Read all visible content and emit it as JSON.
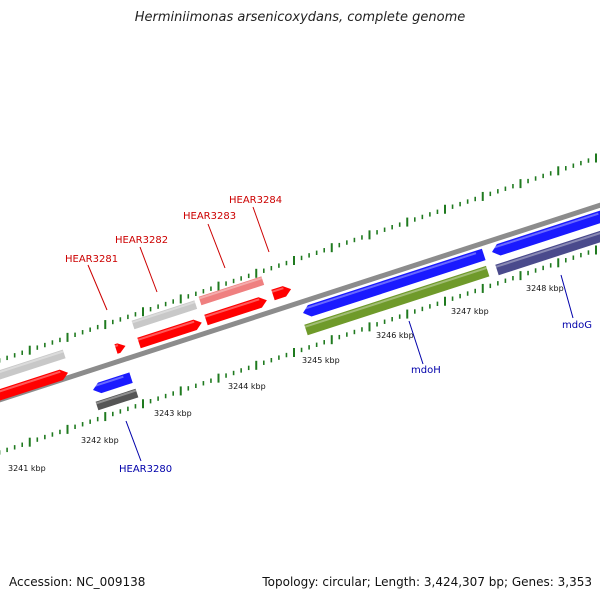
{
  "title": "Herminiimonas arsenicoxydans, complete genome",
  "footer": {
    "accession": "Accession: NC_009138",
    "summary": "Topology: circular; Length: 3,424,307 bp; Genes: 3,353"
  },
  "colors": {
    "backbone": "#8c8c8c",
    "ticks": "#1f7a1f",
    "gene_red": "#ff0000",
    "gene_red_light": "#ef8080",
    "gene_grey": "#c8c8c8",
    "gene_blue": "#1a1aff",
    "gene_dark_grey": "#555555",
    "gene_olive": "#6f9a2a",
    "gene_slate": "#4a4a8c",
    "label_red": "#cc0000",
    "label_blue": "#0000aa"
  },
  "scale_labels": [
    "3241 kbp",
    "3242 kbp",
    "3243 kbp",
    "3244 kbp",
    "3245 kbp",
    "3246 kbp",
    "3247 kbp",
    "3248 kbp"
  ],
  "gene_labels": [
    "HEAR3281",
    "HEAR3282",
    "HEAR3283",
    "HEAR3284",
    "HEAR3280",
    "mdoH",
    "mdoG"
  ]
}
